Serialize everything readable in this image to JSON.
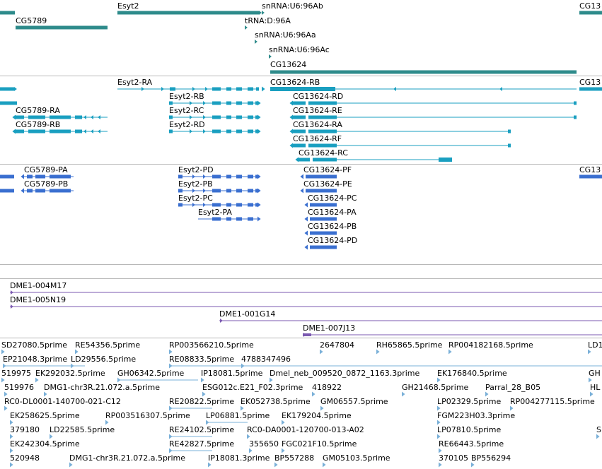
{
  "tracks": {
    "genes": [
      {
        "label": "Esyt2"
      },
      {
        "label": "CG5789"
      },
      {
        "label": "snRNA:U6:96Ab"
      },
      {
        "label": "tRNA:D:96A"
      },
      {
        "label": "snRNA:U6:96Aa"
      },
      {
        "label": "snRNA:U6:96Ac"
      },
      {
        "label": "CG13624"
      },
      {
        "label": "CG13"
      }
    ],
    "transcripts": [
      {
        "label": "Esyt2-RA"
      },
      {
        "label": "CG13624-RB"
      },
      {
        "label": "CG13"
      },
      {
        "label": "Esyt2-RB"
      },
      {
        "label": "CG13624-RD"
      },
      {
        "label": "CG5789-RA"
      },
      {
        "label": "Esyt2-RC"
      },
      {
        "label": "CG13624-RE"
      },
      {
        "label": "CG5789-RB"
      },
      {
        "label": "Esyt2-RD"
      },
      {
        "label": "CG13624-RA"
      },
      {
        "label": "CG13624-RF"
      },
      {
        "label": "CG13624-RC"
      }
    ],
    "proteins": [
      {
        "label": "CG5789-PA"
      },
      {
        "label": "Esyt2-PD"
      },
      {
        "label": "CG13624-PF"
      },
      {
        "label": "CG13"
      },
      {
        "label": "CG5789-PB"
      },
      {
        "label": "Esyt2-PB"
      },
      {
        "label": "CG13624-PE"
      },
      {
        "label": "Esyt2-PC"
      },
      {
        "label": "CG13624-PC"
      },
      {
        "label": "Esyt2-PA"
      },
      {
        "label": "CG13624-PA"
      },
      {
        "label": "CG13624-PB"
      },
      {
        "label": "CG13624-PD"
      }
    ],
    "clones": [
      {
        "label": "DME1-004M17"
      },
      {
        "label": "DME1-005N19"
      },
      {
        "label": "DME1-001G14"
      },
      {
        "label": "DME1-007J13"
      }
    ],
    "ests": [
      {
        "label": "SD27080.5prime"
      },
      {
        "label": "RE54356.5prime"
      },
      {
        "label": "RP003566210.5prime"
      },
      {
        "label": "2647804"
      },
      {
        "label": "RH65865.5prime"
      },
      {
        "label": "RP004182168.5prime"
      },
      {
        "label": "LD1"
      },
      {
        "label": "EP21048.3prime"
      },
      {
        "label": "LD29556.5prime"
      },
      {
        "label": "RE08833.5prime"
      },
      {
        "label": "4788347496"
      },
      {
        "label": "519975"
      },
      {
        "label": "EK292032.5prime"
      },
      {
        "label": "GH06342.5prime"
      },
      {
        "label": "IP18081.5prime"
      },
      {
        "label": "Dmel_neb_009520_0872_1163.3prime"
      },
      {
        "label": "EK176840.5prime"
      },
      {
        "label": "GH"
      },
      {
        "label": "519976"
      },
      {
        "label": "DMG1-chr3R.21.072.a.5prime"
      },
      {
        "label": "ESG012c.E21_F02.3prime"
      },
      {
        "label": "418922"
      },
      {
        "label": "GH21468.5prime"
      },
      {
        "label": "Parral_28_B05"
      },
      {
        "label": "HL"
      },
      {
        "label": "RC0-DL0001-140700-021-C12"
      },
      {
        "label": "RE20822.5prime"
      },
      {
        "label": "EK052738.5prime"
      },
      {
        "label": "GM06557.5prime"
      },
      {
        "label": "LP02329.5prime"
      },
      {
        "label": "RP004277115.5prime"
      },
      {
        "label": "EK258625.5prime"
      },
      {
        "label": "RP003516307.5prime"
      },
      {
        "label": "LP06881.5prime"
      },
      {
        "label": "EK179204.5prime"
      },
      {
        "label": "FGM223H03.3prime"
      },
      {
        "label": "379180"
      },
      {
        "label": "LD22585.5prime"
      },
      {
        "label": "RE24102.5prime"
      },
      {
        "label": "RC0-DA0001-120700-013-A02"
      },
      {
        "label": "LP07810.5prime"
      },
      {
        "label": "S"
      },
      {
        "label": "EK242304.5prime"
      },
      {
        "label": "RE42827.5prime"
      },
      {
        "label": "355650"
      },
      {
        "label": "FGC021F10.5prime"
      },
      {
        "label": "RE66443.5prime"
      },
      {
        "label": "520948"
      },
      {
        "label": "DMG1-chr3R.21.072.a.5prime"
      },
      {
        "label": "IP18081.3prime"
      },
      {
        "label": "BP557288"
      },
      {
        "label": "GM05103.5prime"
      },
      {
        "label": "370105"
      },
      {
        "label": "BP556294"
      }
    ]
  },
  "colors": {
    "gene": "#2e8b8b",
    "transcript": "#1a9fc0",
    "protein": "#3a6fd0",
    "clone": "#7b59b0",
    "est": "#7ab0d8",
    "separator": "#b8b8b8"
  }
}
